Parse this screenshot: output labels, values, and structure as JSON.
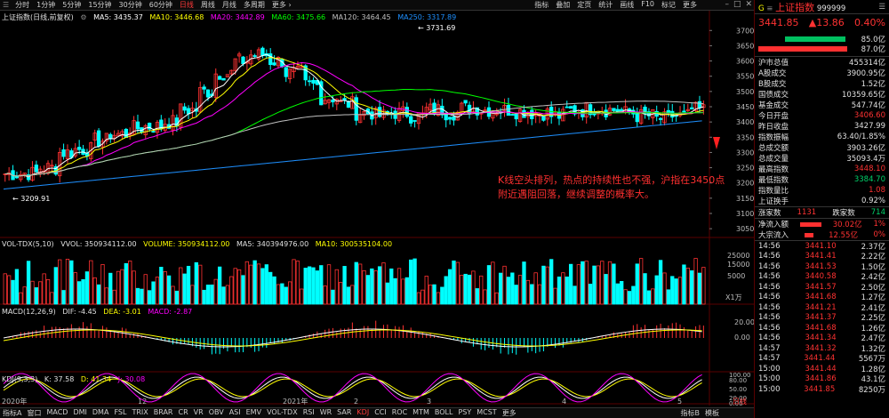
{
  "toolbar": {
    "timeframes": [
      "分时",
      "1分钟",
      "5分钟",
      "15分钟",
      "30分钟",
      "60分钟",
      "日线",
      "周线",
      "月线",
      "多周期",
      "更多 ›"
    ],
    "active": "日线",
    "right_items": [
      "指标",
      "叠加",
      "定页",
      "统计",
      "画线",
      "F10",
      "标记",
      "更多"
    ]
  },
  "main_legend": {
    "title": "上证指数(日线,前复权)",
    "ma5": "MA5: 3435.37",
    "ma10": "MA10: 3446.68",
    "ma20": "MA20: 3442.89",
    "ma60": "MA60: 3475.66",
    "ma120": "MA120: 3464.45",
    "ma250": "MA250: 3317.89"
  },
  "annotations": {
    "high": "3731.69",
    "low": "3209.91",
    "comment": "K线空头排列，热点的持续性也不强，沪指在3450点附近遇阻回落，继续调整的概率大。"
  },
  "y_axis": {
    "main": [
      "3700",
      "3650",
      "3600",
      "3550",
      "3500",
      "3450",
      "3400",
      "3350",
      "3300",
      "3250",
      "3200",
      "3150",
      "3100",
      "3050"
    ],
    "vol": [
      "25000",
      "15000",
      "5000",
      "X1万"
    ],
    "macd": [
      "20.00",
      "0.00"
    ],
    "kdj": [
      "100.00",
      "80.00",
      "50.00",
      "20.00",
      "0.00"
    ]
  },
  "x_axis": {
    "labels": [
      "2020年",
      "12",
      "2021年",
      "2",
      "3",
      "4",
      "5"
    ],
    "right_label": "日线"
  },
  "vol_legend": {
    "title": "VOL-TDX(5,10)",
    "vvol": "VVOL: 350934112.00",
    "volume": "VOLUME: 350934112.00",
    "ma5": "MA5: 340394976.00",
    "ma10": "MA10: 300535104.00"
  },
  "macd_legend": {
    "title": "MACD(12,26,9)",
    "dif": "DIF: -4.45",
    "dea": "DEA: -3.01",
    "macd": "MACD: -2.87"
  },
  "kdj_legend": {
    "title": "KDJ(9,3,3)",
    "k": "K: 37.58",
    "d": "D: 41.34",
    "j": "J: 30.08"
  },
  "bottom_tabs": [
    "指标A",
    "窗口",
    "MACD",
    "DMI",
    "DMA",
    "FSL",
    "TRIX",
    "BRAR",
    "CR",
    "VR",
    "OBV",
    "ASI",
    "EMV",
    "VOL-TDX",
    "RSI",
    "WR",
    "SAR",
    "KDJ",
    "CCI",
    "ROC",
    "MTM",
    "BOLL",
    "PSY",
    "MCST",
    "更多"
  ],
  "bottom_active": "KDJ",
  "bottom_right": [
    "指标B",
    "模板"
  ],
  "quote": {
    "badge": "G",
    "name": "上证指数",
    "code": "999999",
    "price": "3441.85",
    "change": "▲13.86",
    "pct": "0.40%",
    "bar1": "85.0亿",
    "bar2": "87.0亿",
    "stats": [
      {
        "k": "沪市总值",
        "v": "455314亿",
        "c": "white"
      },
      {
        "k": "A股成交",
        "v": "3900.95亿",
        "c": "white"
      },
      {
        "k": "B股成交",
        "v": "1.52亿",
        "c": "white"
      },
      {
        "k": "国债成交",
        "v": "10359.65亿",
        "c": "white"
      },
      {
        "k": "基金成交",
        "v": "547.74亿",
        "c": "white"
      },
      {
        "k": "今日开盘",
        "v": "3406.60",
        "c": "red"
      },
      {
        "k": "昨日收盘",
        "v": "3427.99",
        "c": "white"
      },
      {
        "k": "指数振幅",
        "v": "63.40/1.85%",
        "c": "white"
      },
      {
        "k": "总成交额",
        "v": "3903.26亿",
        "c": "white"
      },
      {
        "k": "总成交量",
        "v": "35093.4万",
        "c": "white"
      },
      {
        "k": "最高指数",
        "v": "3448.10",
        "c": "red"
      },
      {
        "k": "最低指数",
        "v": "3384.70",
        "c": "green"
      },
      {
        "k": "指数量比",
        "v": "1.08",
        "c": "red"
      },
      {
        "k": "上证换手",
        "v": "0.92%",
        "c": "white"
      }
    ],
    "up_label": "涨家数",
    "up": "1131",
    "down_label": "跌家数",
    "down": "714",
    "flow": [
      {
        "k": "净流入额",
        "v": "30.02亿",
        "p": "1%"
      },
      {
        "k": "大宗流入",
        "v": "12.55亿",
        "p": "0%"
      }
    ],
    "ticks": [
      [
        "14:56",
        "3441.10",
        "2.37亿"
      ],
      [
        "14:56",
        "3441.41",
        "2.22亿"
      ],
      [
        "14:56",
        "3441.53",
        "1.50亿"
      ],
      [
        "14:56",
        "3440.58",
        "2.42亿"
      ],
      [
        "14:56",
        "3441.57",
        "2.50亿"
      ],
      [
        "14:56",
        "3441.68",
        "1.27亿"
      ],
      [
        "14:56",
        "3441.21",
        "2.41亿"
      ],
      [
        "14:56",
        "3441.37",
        "2.25亿"
      ],
      [
        "14:56",
        "3441.68",
        "1.26亿"
      ],
      [
        "14:56",
        "3441.34",
        "2.47亿"
      ],
      [
        "14:57",
        "3441.32",
        "1.32亿"
      ],
      [
        "14:57",
        "3441.44",
        "5567万"
      ],
      [
        "15:00",
        "3441.44",
        "1.28亿"
      ],
      [
        "15:00",
        "3441.86",
        "43.1亿"
      ],
      [
        "15:00",
        "3441.85",
        "8250万"
      ]
    ]
  },
  "colors": {
    "up": "#ff3232",
    "down": "#00ffff",
    "ma5": "#ffffff",
    "ma10": "#ffff00",
    "ma20": "#ff00ff",
    "ma60": "#00ff00",
    "ma120": "#c0c0c0",
    "ma250": "#1e90ff"
  }
}
